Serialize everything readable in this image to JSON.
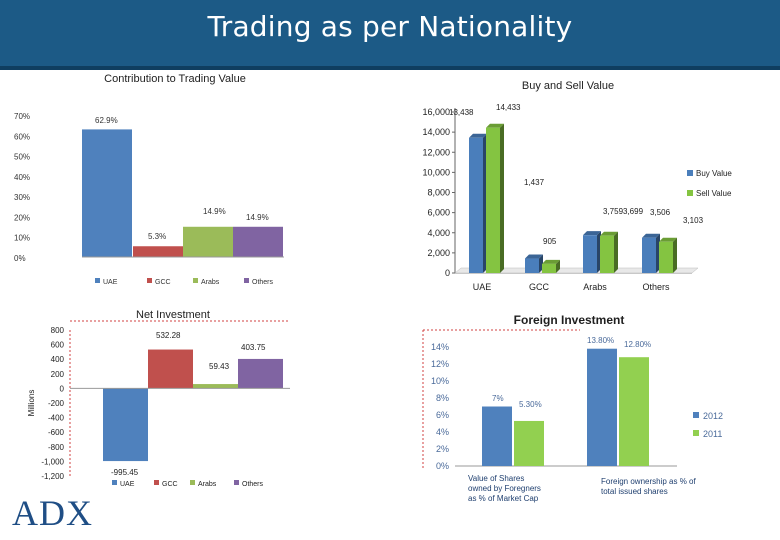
{
  "header": {
    "title": "Trading as per Nationality"
  },
  "logo": {
    "text": "ADX"
  },
  "colors": {
    "banner": "#1c5a86",
    "blue": "#4f81bd",
    "red": "#c0504d",
    "green": "#9bbb59",
    "purple": "#8064a2",
    "buy": "#4a7ebb",
    "sell": "#84c441"
  },
  "chart_data": [
    {
      "id": "contribution",
      "type": "bar",
      "title": "Contribution to Trading Value",
      "categories": [
        "UAE",
        "GCC",
        "Arabs",
        "Others"
      ],
      "values": [
        62.9,
        5.3,
        14.9,
        14.9
      ],
      "labels": [
        "62.9%",
        "5.3%",
        "14.9%",
        "14.9%"
      ],
      "colors": [
        "#4f81bd",
        "#c0504d",
        "#9bbb59",
        "#8064a2"
      ],
      "ylim": [
        0,
        70
      ],
      "yticks": [
        "0%",
        "10%",
        "20%",
        "30%",
        "40%",
        "50%",
        "60%",
        "70%"
      ],
      "legend": "bottom"
    },
    {
      "id": "buysell",
      "type": "bar",
      "title": "Buy and Sell Value",
      "categories": [
        "UAE",
        "GCC",
        "Arabs",
        "Others"
      ],
      "series": [
        {
          "name": "Buy Value",
          "values": [
            13438,
            1437,
            3759,
            3506
          ],
          "labels": [
            "13,438",
            "1,437",
            "3,759",
            "3,506"
          ],
          "color": "#4a7ebb"
        },
        {
          "name": "Sell Value",
          "values": [
            14433,
            905,
            3699,
            3103
          ],
          "labels": [
            "14,433",
            "905",
            "3,699",
            "3,103"
          ],
          "color": "#84c441"
        }
      ],
      "ylim": [
        0,
        16000
      ],
      "yticks": [
        "0",
        "2,000",
        "4,000",
        "6,000",
        "8,000",
        "10,000",
        "12,000",
        "14,000",
        "16,000"
      ],
      "legend": "right"
    },
    {
      "id": "netinv",
      "type": "bar",
      "title": "Net Investment",
      "ylabel": "Millions",
      "categories": [
        "UAE",
        "GCC",
        "Arabs",
        "Others"
      ],
      "values": [
        -995.45,
        532.28,
        59.43,
        403.75
      ],
      "labels": [
        "-995.45",
        "532.28",
        "59.43",
        "403.75"
      ],
      "colors": [
        "#4f81bd",
        "#c0504d",
        "#9bbb59",
        "#8064a2"
      ],
      "ylim": [
        -1200,
        800
      ],
      "yticks": [
        "-1,200",
        "-1,000",
        "-800",
        "-600",
        "-400",
        "-200",
        "0",
        "200",
        "400",
        "600",
        "800"
      ],
      "legend": "bottom"
    },
    {
      "id": "foreign",
      "type": "bar",
      "title": "Foreign Investment",
      "categories": [
        "Value of Shares owned by Foregners as % of Market Cap",
        "Foreign ownership as % of total issued shares"
      ],
      "category_lines": [
        [
          "Value of Shares",
          "owned by Foregners",
          "as % of Market Cap"
        ],
        [
          "Foreign ownership as % of",
          "total issued shares"
        ]
      ],
      "series": [
        {
          "name": "2012",
          "values": [
            7,
            13.8
          ],
          "labels": [
            "7%",
            "13.80%"
          ],
          "color": "#4f81bd"
        },
        {
          "name": "2011",
          "values": [
            5.3,
            12.8
          ],
          "labels": [
            "5.30%",
            "12.80%"
          ],
          "color": "#92d050"
        }
      ],
      "ylim": [
        0,
        14
      ],
      "yticks": [
        "0%",
        "2%",
        "4%",
        "6%",
        "8%",
        "10%",
        "12%",
        "14%"
      ],
      "legend": "right"
    }
  ]
}
